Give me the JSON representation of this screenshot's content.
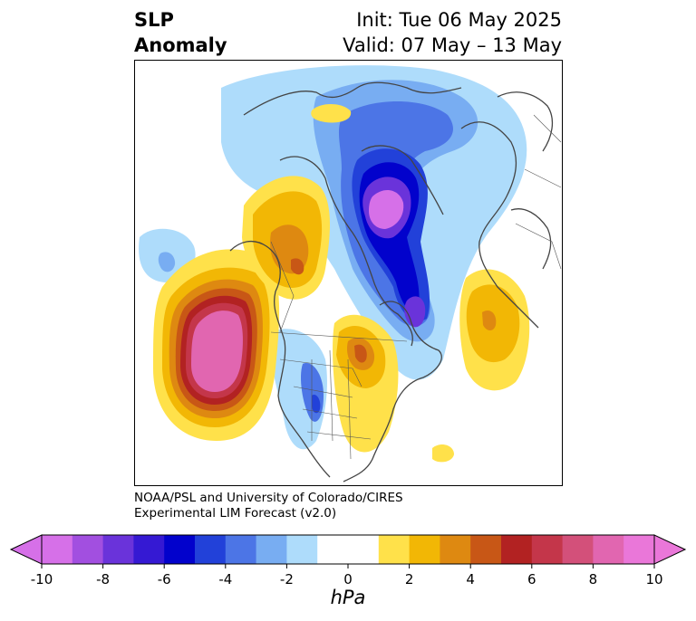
{
  "title": {
    "left_line1": "SLP",
    "left_line2": "Anomaly",
    "right_line1": "Init: Tue 06 May 2025",
    "right_line2": "Valid: 07 May – 13 May"
  },
  "credits": {
    "line1": "NOAA/PSL and University of Colorado/CIRES",
    "line2": "Experimental LIM Forecast (v2.0)"
  },
  "colorbar": {
    "unit": "hPa",
    "tick_labels": [
      "-10",
      "-8",
      "-6",
      "-4",
      "-2",
      "0",
      "2",
      "4",
      "6",
      "8",
      "10"
    ],
    "colors": [
      "#d670e8",
      "#a24fe0",
      "#6a33da",
      "#3519d3",
      "#0202cc",
      "#2241d9",
      "#4c75e6",
      "#78adf2",
      "#aedcfb",
      "#ffffff",
      "#ffffff",
      "#ffe14a",
      "#f2b705",
      "#de8911",
      "#c85716",
      "#b22222",
      "#c4364a",
      "#d3507a",
      "#e166b0",
      "#ea77d9"
    ],
    "under_color": "#d670e8",
    "over_color": "#ea77d9"
  },
  "map": {
    "projection": "north-polar-stereographic",
    "features": [
      "SLP anomaly contours",
      "coastlines",
      "country borders",
      "US state borders"
    ]
  }
}
